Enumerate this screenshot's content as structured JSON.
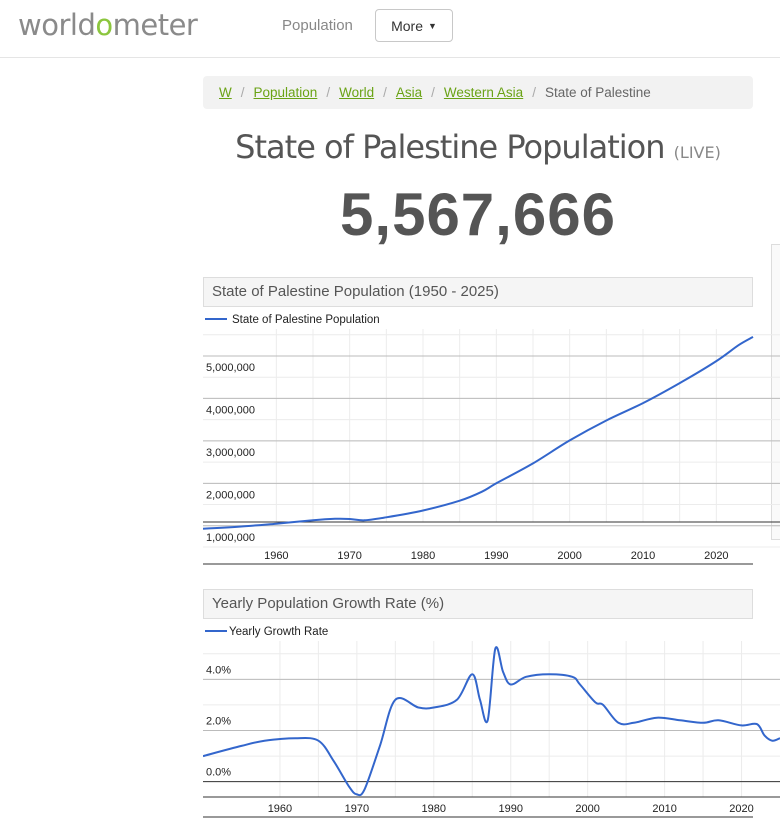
{
  "header": {
    "logo_pre": "world",
    "logo_o": "o",
    "logo_post": "meter",
    "nav_population": "Population",
    "more_label": "More"
  },
  "breadcrumb": {
    "items": [
      "W",
      "Population",
      "World",
      "Asia",
      "Western Asia"
    ],
    "current": "State of Palestine"
  },
  "title": {
    "main": "State of Palestine Population",
    "live": "(LIVE)"
  },
  "counter": "5,567,666",
  "colors": {
    "line": "#3366cc",
    "accent": "#8cc63e",
    "link": "#6aa315"
  },
  "chart_data": [
    {
      "type": "line",
      "title": "State of Palestine Population (1950 - 2025)",
      "legend": "State of Palestine Population",
      "legend_position": "top-left",
      "grid": true,
      "xlim": [
        1950,
        2025
      ],
      "ylim": [
        500000,
        5800000
      ],
      "x_ticks": [
        "1960",
        "1970",
        "1980",
        "1990",
        "2000",
        "2010",
        "2020"
      ],
      "y_ticks": [
        "1,000,000",
        "2,000,000",
        "3,000,000",
        "4,000,000",
        "5,000,000"
      ],
      "series": [
        {
          "name": "State of Palestine Population",
          "x": [
            1950,
            1955,
            1960,
            1965,
            1968,
            1970,
            1972,
            1975,
            1980,
            1985,
            1988,
            1990,
            1995,
            2000,
            2005,
            2010,
            2015,
            2020,
            2023,
            2025
          ],
          "y": [
            930000,
            980000,
            1050000,
            1130000,
            1165000,
            1160000,
            1130000,
            1200000,
            1360000,
            1590000,
            1800000,
            2000000,
            2470000,
            3010000,
            3480000,
            3890000,
            4360000,
            4880000,
            5250000,
            5450000
          ]
        }
      ]
    },
    {
      "type": "line",
      "title": "Yearly Population Growth Rate (%)",
      "legend": "Yearly Growth Rate",
      "legend_position": "top-left",
      "grid": true,
      "xlim": [
        1950,
        2025
      ],
      "ylim": [
        -0.6,
        5.5
      ],
      "x_ticks": [
        "1960",
        "1970",
        "1980",
        "1990",
        "2000",
        "2010",
        "2020"
      ],
      "y_ticks": [
        "0.0%",
        "2.0%",
        "4.0%"
      ],
      "series": [
        {
          "name": "Yearly Growth Rate",
          "x": [
            1950,
            1955,
            1958,
            1962,
            1965,
            1967,
            1969,
            1970,
            1971,
            1973,
            1975,
            1978,
            1980,
            1983,
            1985,
            1986,
            1987,
            1988,
            1989,
            1990,
            1992,
            1995,
            1998,
            1999,
            2001,
            2002,
            2004,
            2006,
            2009,
            2012,
            2015,
            2017,
            2020,
            2022,
            2023,
            2024,
            2025
          ],
          "y": [
            1.0,
            1.4,
            1.6,
            1.7,
            1.6,
            0.8,
            -0.2,
            -0.5,
            -0.3,
            1.4,
            3.2,
            2.9,
            2.9,
            3.2,
            4.2,
            3.2,
            2.4,
            5.2,
            4.3,
            3.8,
            4.1,
            4.2,
            4.1,
            3.8,
            3.1,
            3.0,
            2.3,
            2.3,
            2.5,
            2.4,
            2.3,
            2.4,
            2.2,
            2.25,
            1.8,
            1.6,
            1.7
          ]
        }
      ]
    }
  ]
}
